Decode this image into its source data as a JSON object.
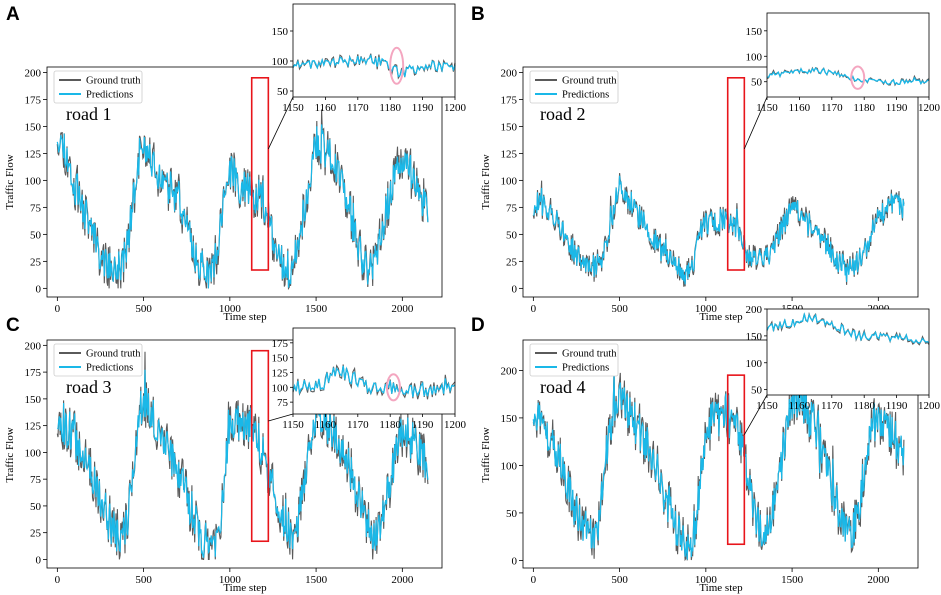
{
  "figure": {
    "series_names": [
      "Ground truth",
      "Predictions"
    ],
    "series_colors": {
      "ground_truth": "#5a5a5a",
      "predictions": "#1ab8e8"
    },
    "highlight_box_color": "#e8151b",
    "highlight_circle_color": "#f4a6c0"
  },
  "chart_data": [
    {
      "panel": "A",
      "type": "line",
      "road_label": "road 1",
      "xlabel": "Time step",
      "ylabel": "Traffic Flow",
      "xlim": [
        -60,
        2230
      ],
      "ylim": [
        -8,
        205
      ],
      "xticks": [
        0,
        500,
        1000,
        1500,
        2000
      ],
      "yticks": [
        0,
        25,
        50,
        75,
        100,
        125,
        150,
        175,
        200
      ],
      "legend": [
        "Ground truth",
        "Predictions"
      ],
      "profile_anchors": [
        [
          0,
          145
        ],
        [
          40,
          130
        ],
        [
          90,
          100
        ],
        [
          140,
          75
        ],
        [
          200,
          55
        ],
        [
          250,
          30
        ],
        [
          300,
          20
        ],
        [
          340,
          15
        ],
        [
          370,
          18
        ],
        [
          400,
          35
        ],
        [
          440,
          80
        ],
        [
          470,
          120
        ],
        [
          500,
          130
        ],
        [
          540,
          120
        ],
        [
          600,
          100
        ],
        [
          660,
          90
        ],
        [
          700,
          80
        ],
        [
          750,
          55
        ],
        [
          800,
          30
        ],
        [
          850,
          15
        ],
        [
          890,
          10
        ],
        [
          920,
          30
        ],
        [
          950,
          60
        ],
        [
          980,
          95
        ],
        [
          1000,
          110
        ],
        [
          1040,
          100
        ],
        [
          1090,
          90
        ],
        [
          1150,
          85
        ],
        [
          1180,
          95
        ],
        [
          1220,
          60
        ],
        [
          1270,
          35
        ],
        [
          1320,
          18
        ],
        [
          1350,
          15
        ],
        [
          1380,
          30
        ],
        [
          1420,
          65
        ],
        [
          1470,
          105
        ],
        [
          1500,
          135
        ],
        [
          1560,
          125
        ],
        [
          1620,
          115
        ],
        [
          1660,
          95
        ],
        [
          1700,
          70
        ],
        [
          1740,
          40
        ],
        [
          1780,
          22
        ],
        [
          1820,
          18
        ],
        [
          1850,
          30
        ],
        [
          1890,
          60
        ],
        [
          1930,
          85
        ],
        [
          1970,
          110
        ],
        [
          2000,
          115
        ],
        [
          2050,
          105
        ],
        [
          2100,
          85
        ],
        [
          2150,
          75
        ]
      ],
      "amplitude": 22,
      "seed": 11,
      "highlight_range": [
        1150,
        1200
      ],
      "highlight_ylim": [
        17,
        195
      ],
      "inset": {
        "xlim": [
          1150,
          1200
        ],
        "ylim": [
          40,
          195
        ],
        "xticks": [
          1150,
          1160,
          1170,
          1180,
          1190,
          1200
        ],
        "yticks": [
          50,
          100,
          150
        ],
        "circle_center": [
          1182,
          92
        ],
        "circle_radii": [
          2,
          30
        ],
        "profile_anchors": [
          [
            1150,
            95
          ],
          [
            1160,
            98
          ],
          [
            1170,
            102
          ],
          [
            1178,
            100
          ],
          [
            1183,
            80
          ],
          [
            1188,
            88
          ],
          [
            1195,
            90
          ],
          [
            1200,
            88
          ]
        ],
        "amplitude": 12,
        "seed": 21
      }
    },
    {
      "panel": "B",
      "type": "line",
      "road_label": "road 2",
      "xlabel": "Time step",
      "ylabel": "Traffic Flow",
      "xlim": [
        -60,
        2230
      ],
      "ylim": [
        -8,
        205
      ],
      "xticks": [
        0,
        500,
        1000,
        1500,
        2000
      ],
      "yticks": [
        0,
        25,
        50,
        75,
        100,
        125,
        150,
        175,
        200
      ],
      "legend": [
        "Ground truth",
        "Predictions"
      ],
      "profile_anchors": [
        [
          0,
          75
        ],
        [
          40,
          80
        ],
        [
          100,
          70
        ],
        [
          150,
          60
        ],
        [
          200,
          45
        ],
        [
          250,
          30
        ],
        [
          300,
          22
        ],
        [
          350,
          20
        ],
        [
          400,
          25
        ],
        [
          450,
          60
        ],
        [
          490,
          95
        ],
        [
          520,
          90
        ],
        [
          580,
          75
        ],
        [
          640,
          60
        ],
        [
          700,
          45
        ],
        [
          750,
          35
        ],
        [
          800,
          25
        ],
        [
          850,
          18
        ],
        [
          880,
          10
        ],
        [
          920,
          20
        ],
        [
          960,
          45
        ],
        [
          990,
          60
        ],
        [
          1040,
          62
        ],
        [
          1100,
          62
        ],
        [
          1160,
          58
        ],
        [
          1200,
          45
        ],
        [
          1260,
          30
        ],
        [
          1320,
          25
        ],
        [
          1360,
          28
        ],
        [
          1400,
          40
        ],
        [
          1440,
          55
        ],
        [
          1480,
          70
        ],
        [
          1520,
          75
        ],
        [
          1560,
          65
        ],
        [
          1620,
          55
        ],
        [
          1680,
          45
        ],
        [
          1740,
          30
        ],
        [
          1790,
          20
        ],
        [
          1830,
          15
        ],
        [
          1880,
          25
        ],
        [
          1930,
          40
        ],
        [
          1980,
          60
        ],
        [
          2040,
          75
        ],
        [
          2100,
          80
        ],
        [
          2150,
          75
        ]
      ],
      "amplitude": 14,
      "seed": 12,
      "highlight_range": [
        1150,
        1200
      ],
      "highlight_ylim": [
        17,
        195
      ],
      "inset": {
        "xlim": [
          1150,
          1200
        ],
        "ylim": [
          20,
          185
        ],
        "xticks": [
          1150,
          1160,
          1170,
          1180,
          1190,
          1200
        ],
        "yticks": [
          50,
          100,
          150
        ],
        "circle_center": [
          1178,
          58
        ],
        "circle_radii": [
          2,
          22
        ],
        "profile_anchors": [
          [
            1150,
            60
          ],
          [
            1160,
            72
          ],
          [
            1170,
            70
          ],
          [
            1178,
            55
          ],
          [
            1185,
            52
          ],
          [
            1193,
            48
          ],
          [
            1200,
            50
          ]
        ],
        "amplitude": 7,
        "seed": 22
      }
    },
    {
      "panel": "C",
      "type": "line",
      "road_label": "road 3",
      "xlabel": "Time step",
      "ylabel": "Traffic Flow",
      "xlim": [
        -60,
        2230
      ],
      "ylim": [
        -8,
        205
      ],
      "xticks": [
        0,
        500,
        1000,
        1500,
        2000
      ],
      "yticks": [
        0,
        25,
        50,
        75,
        100,
        125,
        150,
        175,
        200
      ],
      "legend": [
        "Ground truth",
        "Predictions"
      ],
      "profile_anchors": [
        [
          0,
          130
        ],
        [
          40,
          125
        ],
        [
          100,
          115
        ],
        [
          160,
          95
        ],
        [
          220,
          70
        ],
        [
          280,
          45
        ],
        [
          330,
          28
        ],
        [
          370,
          20
        ],
        [
          400,
          30
        ],
        [
          440,
          75
        ],
        [
          470,
          130
        ],
        [
          500,
          150
        ],
        [
          540,
          135
        ],
        [
          600,
          115
        ],
        [
          660,
          95
        ],
        [
          720,
          75
        ],
        [
          780,
          45
        ],
        [
          830,
          25
        ],
        [
          880,
          12
        ],
        [
          910,
          10
        ],
        [
          940,
          30
        ],
        [
          970,
          75
        ],
        [
          1000,
          120
        ],
        [
          1040,
          130
        ],
        [
          1100,
          125
        ],
        [
          1150,
          115
        ],
        [
          1200,
          90
        ],
        [
          1250,
          65
        ],
        [
          1300,
          40
        ],
        [
          1340,
          25
        ],
        [
          1370,
          20
        ],
        [
          1400,
          40
        ],
        [
          1440,
          80
        ],
        [
          1480,
          120
        ],
        [
          1510,
          140
        ],
        [
          1560,
          130
        ],
        [
          1620,
          115
        ],
        [
          1680,
          95
        ],
        [
          1730,
          65
        ],
        [
          1780,
          40
        ],
        [
          1820,
          25
        ],
        [
          1860,
          20
        ],
        [
          1900,
          45
        ],
        [
          1940,
          80
        ],
        [
          1980,
          110
        ],
        [
          2020,
          120
        ],
        [
          2080,
          105
        ],
        [
          2150,
          90
        ]
      ],
      "amplitude": 24,
      "seed": 13,
      "highlight_range": [
        1150,
        1200
      ],
      "highlight_ylim": [
        17,
        195
      ],
      "inset": {
        "xlim": [
          1150,
          1200
        ],
        "ylim": [
          55,
          200
        ],
        "xticks": [
          1150,
          1160,
          1170,
          1180,
          1190,
          1200
        ],
        "yticks": [
          75,
          100,
          125,
          150,
          175
        ],
        "circle_center": [
          1181,
          100
        ],
        "circle_radii": [
          2,
          22
        ],
        "profile_anchors": [
          [
            1150,
            100
          ],
          [
            1160,
            110
          ],
          [
            1165,
            130
          ],
          [
            1170,
            105
          ],
          [
            1178,
            100
          ],
          [
            1183,
            98
          ],
          [
            1190,
            95
          ],
          [
            1200,
            98
          ]
        ],
        "amplitude": 16,
        "seed": 23
      }
    },
    {
      "panel": "D",
      "type": "line",
      "road_label": "road 4",
      "xlabel": "Time step",
      "ylabel": "Traffic Flow",
      "xlim": [
        -60,
        2230
      ],
      "ylim": [
        -8,
        232
      ],
      "xticks": [
        0,
        500,
        1000,
        1500,
        2000
      ],
      "yticks": [
        0,
        50,
        100,
        150,
        200
      ],
      "legend": [
        "Ground truth",
        "Predictions"
      ],
      "profile_anchors": [
        [
          0,
          160
        ],
        [
          40,
          150
        ],
        [
          100,
          130
        ],
        [
          150,
          110
        ],
        [
          200,
          80
        ],
        [
          250,
          50
        ],
        [
          300,
          30
        ],
        [
          340,
          20
        ],
        [
          380,
          40
        ],
        [
          420,
          110
        ],
        [
          460,
          160
        ],
        [
          500,
          175
        ],
        [
          540,
          160
        ],
        [
          600,
          140
        ],
        [
          660,
          120
        ],
        [
          720,
          100
        ],
        [
          780,
          60
        ],
        [
          830,
          35
        ],
        [
          880,
          20
        ],
        [
          910,
          15
        ],
        [
          940,
          40
        ],
        [
          980,
          100
        ],
        [
          1010,
          140
        ],
        [
          1060,
          150
        ],
        [
          1120,
          155
        ],
        [
          1180,
          150
        ],
        [
          1220,
          110
        ],
        [
          1260,
          70
        ],
        [
          1300,
          45
        ],
        [
          1340,
          30
        ],
        [
          1370,
          30
        ],
        [
          1410,
          70
        ],
        [
          1450,
          120
        ],
        [
          1490,
          160
        ],
        [
          1520,
          170
        ],
        [
          1580,
          155
        ],
        [
          1640,
          135
        ],
        [
          1700,
          100
        ],
        [
          1740,
          70
        ],
        [
          1790,
          40
        ],
        [
          1830,
          25
        ],
        [
          1870,
          40
        ],
        [
          1910,
          90
        ],
        [
          1950,
          130
        ],
        [
          1990,
          150
        ],
        [
          2040,
          145
        ],
        [
          2100,
          125
        ],
        [
          2150,
          115
        ]
      ],
      "amplitude": 28,
      "seed": 14,
      "highlight_range": [
        1150,
        1200
      ],
      "highlight_ylim": [
        17,
        195
      ],
      "inset": {
        "xlim": [
          1150,
          1200
        ],
        "ylim": [
          40,
          200
        ],
        "xticks": [
          1150,
          1160,
          1170,
          1180,
          1190,
          1200
        ],
        "yticks": [
          50,
          100,
          150,
          200
        ],
        "circle_center": null,
        "circle_radii": null,
        "profile_anchors": [
          [
            1150,
            165
          ],
          [
            1158,
            175
          ],
          [
            1163,
            185
          ],
          [
            1170,
            172
          ],
          [
            1178,
            150
          ],
          [
            1185,
            150
          ],
          [
            1193,
            145
          ],
          [
            1200,
            140
          ]
        ],
        "amplitude": 10,
        "seed": 24
      }
    }
  ]
}
